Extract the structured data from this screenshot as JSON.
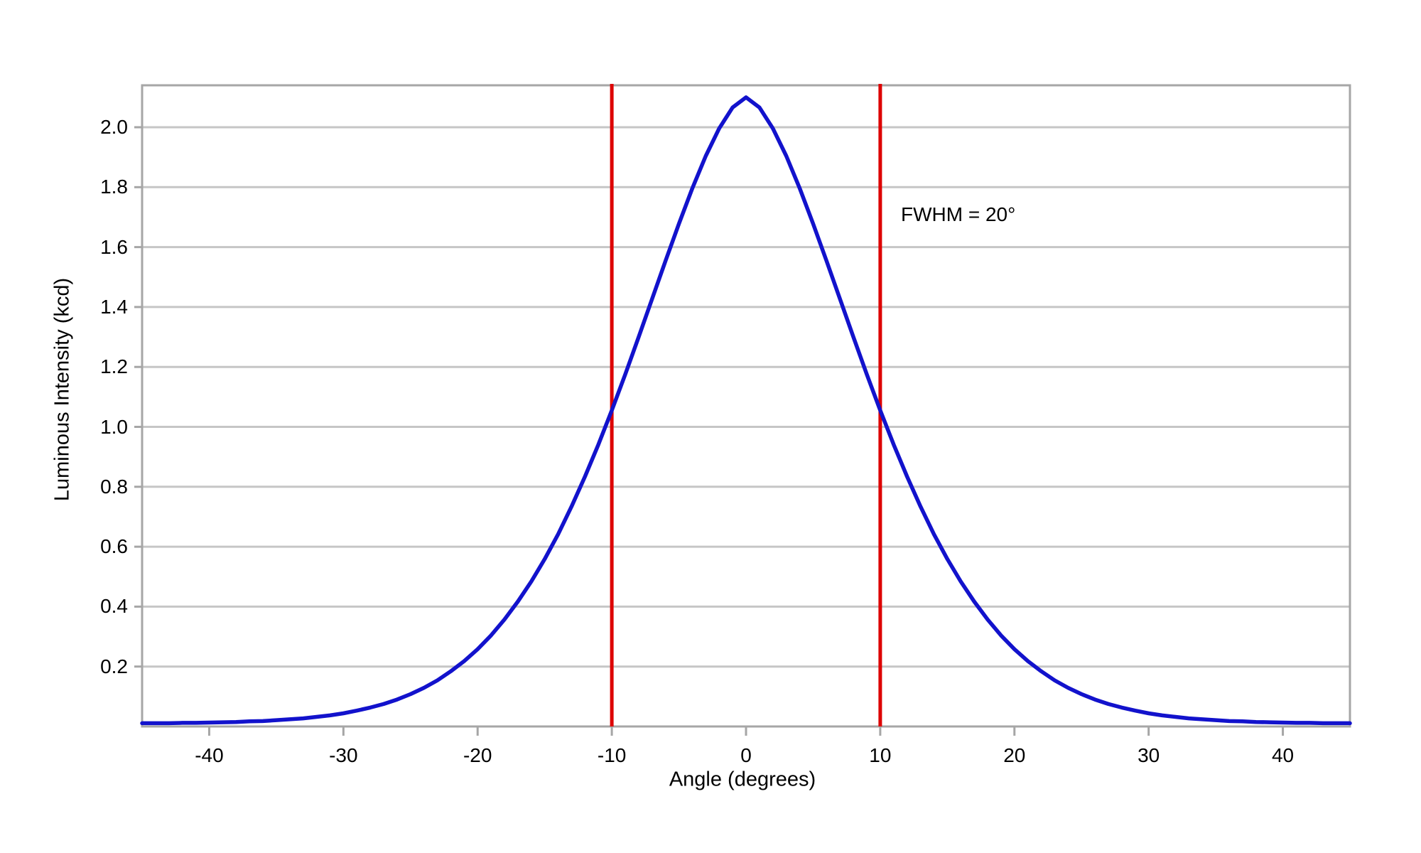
{
  "chart_data": {
    "type": "line",
    "title": "",
    "xlabel": "Angle (degrees)",
    "ylabel": "Luminous Intensity (kcd)",
    "xlim": [
      -45,
      45
    ],
    "ylim": [
      0,
      2.14
    ],
    "x_ticks": [
      -40,
      -30,
      -20,
      -10,
      0,
      10,
      20,
      30,
      40
    ],
    "y_ticks": [
      0.2,
      0.4,
      0.6,
      0.8,
      1.0,
      1.2,
      1.4,
      1.6,
      1.8,
      2.0
    ],
    "grid": "horizontal",
    "legend": "none",
    "background_color": "#FFFFFF",
    "grid_color": "#C6C6C6",
    "axis_color": "#A6A6A6",
    "peak_kcd": 2.1,
    "peak_angle_deg": 0,
    "fwhm_degrees": 20,
    "half_max_kcd": 1.05,
    "marker_lines": [
      {
        "x": -10,
        "color": "#DD0000"
      },
      {
        "x": 10,
        "color": "#DD0000"
      }
    ],
    "annotations": [
      {
        "text": "FWHM = 20°",
        "x": 11.5,
        "y": 1.71
      }
    ],
    "series": [
      {
        "name": "Luminous intensity",
        "color": "#1212CC",
        "x": [
          -45,
          -44,
          -43,
          -42,
          -41,
          -40,
          -39,
          -38,
          -37,
          -36,
          -35,
          -34,
          -33,
          -32,
          -31,
          -30,
          -29,
          -28,
          -27,
          -26,
          -25,
          -24,
          -23,
          -22,
          -21,
          -20,
          -19,
          -18,
          -17,
          -16,
          -15,
          -14,
          -13,
          -12,
          -11,
          -10,
          -9,
          -8,
          -7,
          -6,
          -5,
          -4,
          -3,
          -2,
          -1,
          0,
          1,
          2,
          3,
          4,
          5,
          6,
          7,
          8,
          9,
          10,
          11,
          12,
          13,
          14,
          15,
          16,
          17,
          18,
          19,
          20,
          21,
          22,
          23,
          24,
          25,
          26,
          27,
          28,
          29,
          30,
          31,
          32,
          33,
          34,
          35,
          36,
          37,
          38,
          39,
          40,
          41,
          42,
          43,
          44,
          45
        ],
        "y": [
          0.011,
          0.011,
          0.011,
          0.012,
          0.012,
          0.013,
          0.014,
          0.015,
          0.017,
          0.018,
          0.021,
          0.024,
          0.027,
          0.032,
          0.037,
          0.044,
          0.053,
          0.063,
          0.075,
          0.09,
          0.108,
          0.129,
          0.154,
          0.184,
          0.218,
          0.258,
          0.304,
          0.357,
          0.417,
          0.484,
          0.559,
          0.642,
          0.734,
          0.834,
          0.941,
          1.055,
          1.175,
          1.3,
          1.427,
          1.554,
          1.678,
          1.796,
          1.904,
          1.996,
          2.066,
          2.1,
          2.066,
          1.996,
          1.904,
          1.796,
          1.678,
          1.554,
          1.427,
          1.3,
          1.175,
          1.055,
          0.941,
          0.834,
          0.734,
          0.642,
          0.559,
          0.484,
          0.417,
          0.357,
          0.304,
          0.258,
          0.218,
          0.184,
          0.154,
          0.129,
          0.108,
          0.09,
          0.075,
          0.063,
          0.053,
          0.044,
          0.037,
          0.032,
          0.027,
          0.024,
          0.021,
          0.018,
          0.017,
          0.015,
          0.014,
          0.013,
          0.012,
          0.012,
          0.011,
          0.011,
          0.011
        ]
      }
    ]
  }
}
